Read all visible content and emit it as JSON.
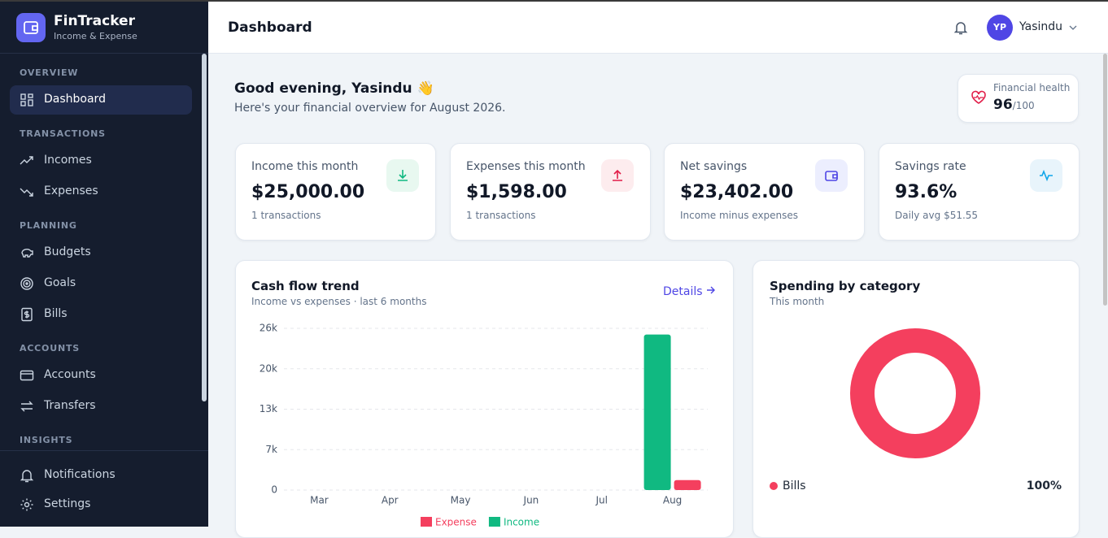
{
  "sidebar": {
    "brand": "FinTracker",
    "tagline": "Income & Expense",
    "sections": [
      {
        "title": "OVERVIEW",
        "items": [
          "Dashboard"
        ]
      },
      {
        "title": "TRANSACTIONS",
        "items": [
          "Incomes",
          "Expenses"
        ]
      },
      {
        "title": "PLANNING",
        "items": [
          "Budgets",
          "Goals",
          "Bills"
        ]
      },
      {
        "title": "ACCOUNTS",
        "items": [
          "Accounts",
          "Transfers"
        ]
      },
      {
        "title": "INSIGHTS",
        "items": []
      }
    ],
    "footer": [
      "Notifications",
      "Settings"
    ]
  },
  "header": {
    "title": "Dashboard",
    "initials": "YP",
    "user": "Yasindu"
  },
  "greeting": {
    "title": "Good evening, Yasindu 👋",
    "subtitle": "Here's your financial overview for August 2026."
  },
  "health": {
    "label": "Financial health",
    "score": "96",
    "max": "/100"
  },
  "stats": [
    {
      "label": "Income this month",
      "value": "$25,000.00",
      "note": "1 transactions"
    },
    {
      "label": "Expenses this month",
      "value": "$1,598.00",
      "note": "1 transactions"
    },
    {
      "label": "Net savings",
      "value": "$23,402.00",
      "note": "Income minus expenses"
    },
    {
      "label": "Savings rate",
      "value": "93.6%",
      "note": "Daily avg $51.55"
    }
  ],
  "cash_flow": {
    "title": "Cash flow trend",
    "subtitle": "Income vs expenses · last 6 months",
    "link": "Details",
    "chart_data": {
      "type": "bar",
      "categories": [
        "Mar",
        "Apr",
        "May",
        "Jun",
        "Jul",
        "Aug"
      ],
      "series": [
        {
          "name": "Expense",
          "color": "#f43f5e",
          "values": [
            0,
            0,
            0,
            0,
            0,
            1598
          ]
        },
        {
          "name": "Income",
          "color": "#10b981",
          "values": [
            0,
            0,
            0,
            0,
            0,
            25000
          ]
        }
      ],
      "ylim": [
        0,
        26000
      ],
      "yticks": [
        0,
        {
          "value": 6500,
          "label": "7k"
        },
        {
          "value": 13000,
          "label": "13k"
        },
        {
          "value": 19500,
          "label": "20k"
        },
        {
          "value": 26000,
          "label": "26k"
        }
      ],
      "grid": true
    }
  },
  "spending": {
    "title": "Spending by category",
    "subtitle": "This month",
    "chart_data": {
      "type": "pie",
      "categories": [
        "Bills"
      ],
      "values": [
        100
      ],
      "value_labels": [
        "100%"
      ],
      "colors": [
        "#f43f5e"
      ]
    }
  }
}
